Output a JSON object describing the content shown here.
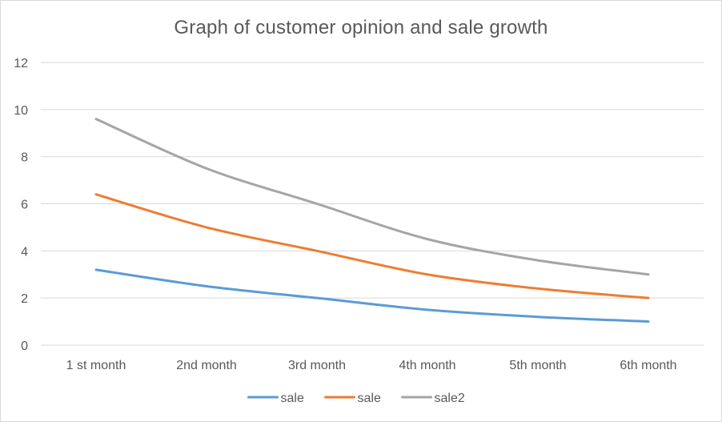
{
  "chart_data": {
    "type": "line",
    "title": "Graph of customer opinion and sale growth",
    "xlabel": "",
    "ylabel": "",
    "categories": [
      "1 st month",
      "2nd month",
      "3rd month",
      "4th month",
      "5th month",
      "6th month"
    ],
    "ylim": [
      0,
      12
    ],
    "yticks": [
      0,
      2,
      4,
      6,
      8,
      10,
      12
    ],
    "grid": true,
    "legend_position": "bottom",
    "series": [
      {
        "name": "sale",
        "color": "#5b9bd5",
        "values": [
          3.2,
          2.5,
          2.0,
          1.5,
          1.2,
          1.0
        ]
      },
      {
        "name": "sale",
        "color": "#ed7d31",
        "values": [
          6.4,
          5.0,
          4.0,
          3.0,
          2.4,
          2.0
        ]
      },
      {
        "name": "sale2",
        "color": "#a5a5a5",
        "values": [
          9.6,
          7.5,
          6.0,
          4.5,
          3.6,
          3.0
        ]
      }
    ]
  }
}
